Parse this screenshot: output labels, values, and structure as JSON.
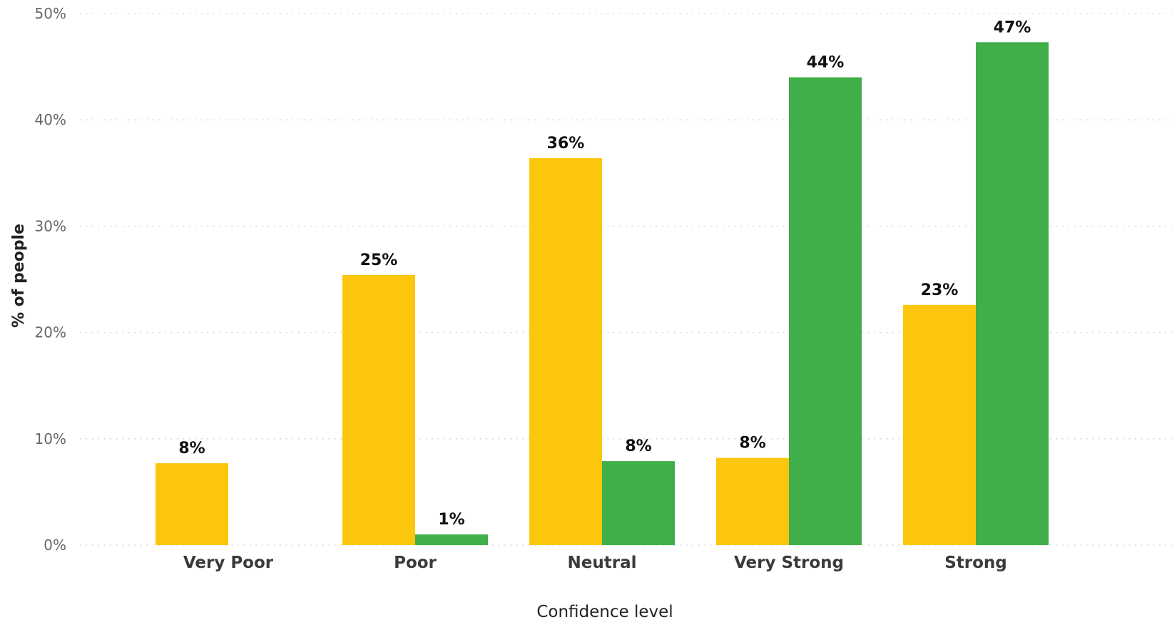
{
  "chart_data": {
    "type": "bar",
    "categories": [
      "Very Poor",
      "Poor",
      "Neutral",
      "Very Strong",
      "Strong"
    ],
    "series": [
      {
        "color": "#FCC60D",
        "values": [
          7.7,
          25.4,
          36.4,
          8.2,
          22.6
        ],
        "labels": [
          "8%",
          "25%",
          "36%",
          "8%",
          "23%"
        ]
      },
      {
        "color": "#40AF49",
        "values": [
          null,
          1.0,
          7.9,
          44.0,
          47.3
        ],
        "labels": [
          "",
          "1%",
          "8%",
          "44%",
          "47%"
        ]
      }
    ],
    "title": "",
    "xlabel": "Confidence level",
    "ylabel": "% of people",
    "ylim": [
      0,
      50
    ],
    "yticks": [
      0,
      10,
      20,
      30,
      40,
      50
    ],
    "ytick_labels": [
      "0%",
      "10%",
      "20%",
      "30%",
      "40%",
      "50%"
    ],
    "grid": true,
    "legend": "none"
  }
}
